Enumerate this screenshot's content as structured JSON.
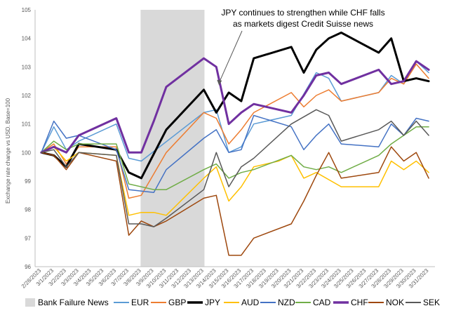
{
  "chart_data": {
    "type": "line",
    "ylabel": "Exchange rate change vs USD. Base=100",
    "ylim": [
      96,
      105
    ],
    "yticks": [
      96,
      97,
      98,
      99,
      100,
      101,
      102,
      103,
      104,
      105
    ],
    "x": [
      "2/28/2023",
      "3/1/2023",
      "3/2/2023",
      "3/3/2023",
      "3/4/2023",
      "3/5/2023",
      "3/6/2023",
      "3/7/2023",
      "3/8/2023",
      "3/9/2023",
      "3/10/2023",
      "3/11/2023",
      "3/12/2023",
      "3/13/2023",
      "3/14/2023",
      "3/15/2023",
      "3/16/2023",
      "3/17/2023",
      "3/18/2023",
      "3/19/2023",
      "3/20/2023",
      "3/21/2023",
      "3/22/2023",
      "3/23/2023",
      "3/24/2023",
      "3/25/2023",
      "3/26/2023",
      "3/27/2023",
      "3/28/2023",
      "3/29/2023",
      "3/30/2023",
      "3/31/2023"
    ],
    "shaded_region": {
      "name": "Bank Failure News",
      "x_start": "3/8/2023",
      "x_end": "3/13/2023",
      "color": "#d9d9d9"
    },
    "annotation": {
      "lines": [
        "JPY continues to strengthen while CHF falls",
        "as markets digest Credit Suisse news"
      ],
      "arrow_to": {
        "x": "3/14/2023",
        "y": 102.3
      }
    },
    "legend_position": "bottom",
    "series": [
      {
        "name": "EUR",
        "color": "#5b9bd5",
        "width": 1.5,
        "points": [
          [
            0,
            100
          ],
          [
            1,
            100.9
          ],
          [
            2,
            100.1
          ],
          [
            3,
            100.4
          ],
          [
            6,
            101
          ],
          [
            7,
            99.8
          ],
          [
            8,
            99.7
          ],
          [
            13,
            101.4
          ],
          [
            14,
            101.5
          ],
          [
            15,
            100
          ],
          [
            16,
            100.2
          ],
          [
            17,
            101
          ],
          [
            20,
            101.3
          ],
          [
            22,
            102.8
          ],
          [
            23,
            102.6
          ],
          [
            24,
            101.8
          ],
          [
            27,
            102.1
          ],
          [
            28,
            102.7
          ],
          [
            29,
            102.4
          ],
          [
            30,
            103.2
          ],
          [
            31,
            102.8
          ]
        ]
      },
      {
        "name": "GBP",
        "color": "#ed7d31",
        "width": 1.5,
        "points": [
          [
            0,
            100
          ],
          [
            1,
            100.3
          ],
          [
            2,
            99.6
          ],
          [
            3,
            100.2
          ],
          [
            6,
            100.2
          ],
          [
            7,
            98.4
          ],
          [
            8,
            98.5
          ],
          [
            10,
            100
          ],
          [
            13,
            101.4
          ],
          [
            14,
            101.2
          ],
          [
            15,
            100.3
          ],
          [
            16,
            100.8
          ],
          [
            17,
            101.4
          ],
          [
            20,
            102.1
          ],
          [
            21,
            101.6
          ],
          [
            22,
            102
          ],
          [
            23,
            102.2
          ],
          [
            24,
            101.8
          ],
          [
            27,
            102.1
          ],
          [
            28,
            102.6
          ],
          [
            29,
            102.4
          ],
          [
            30,
            103.1
          ],
          [
            31,
            102.6
          ]
        ]
      },
      {
        "name": "JPY",
        "color": "#000000",
        "width": 3,
        "points": [
          [
            0,
            100
          ],
          [
            1,
            99.9
          ],
          [
            2,
            99.5
          ],
          [
            3,
            100.3
          ],
          [
            6,
            100.1
          ],
          [
            7,
            99.3
          ],
          [
            8,
            99.1
          ],
          [
            10,
            100.8
          ],
          [
            13,
            102.2
          ],
          [
            14,
            101.4
          ],
          [
            15,
            102.1
          ],
          [
            16,
            101.8
          ],
          [
            17,
            103.3
          ],
          [
            20,
            103.7
          ],
          [
            21,
            102.8
          ],
          [
            22,
            103.6
          ],
          [
            23,
            104
          ],
          [
            24,
            104.2
          ],
          [
            27,
            103.5
          ],
          [
            28,
            104
          ],
          [
            29,
            102.5
          ],
          [
            30,
            102.6
          ],
          [
            31,
            102.5
          ]
        ]
      },
      {
        "name": "AUD",
        "color": "#ffc000",
        "width": 1.5,
        "points": [
          [
            0,
            100
          ],
          [
            1,
            100.2
          ],
          [
            2,
            99.7
          ],
          [
            3,
            100
          ],
          [
            6,
            99.9
          ],
          [
            7,
            97.8
          ],
          [
            8,
            97.9
          ],
          [
            9,
            97.9
          ],
          [
            10,
            97.8
          ],
          [
            13,
            99.1
          ],
          [
            14,
            99.5
          ],
          [
            15,
            98.3
          ],
          [
            16,
            98.8
          ],
          [
            17,
            99.5
          ],
          [
            19,
            99.7
          ],
          [
            20,
            99.9
          ],
          [
            21,
            99.1
          ],
          [
            22,
            99.3
          ],
          [
            24,
            98.8
          ],
          [
            27,
            98.8
          ],
          [
            28,
            99.7
          ],
          [
            29,
            99.4
          ],
          [
            30,
            99.7
          ],
          [
            31,
            99.3
          ]
        ]
      },
      {
        "name": "NZD",
        "color": "#4472c4",
        "width": 1.5,
        "points": [
          [
            0,
            100
          ],
          [
            1,
            101.1
          ],
          [
            2,
            100.5
          ],
          [
            3,
            100.6
          ],
          [
            6,
            100.1
          ],
          [
            7,
            98.7
          ],
          [
            9,
            98.6
          ],
          [
            10,
            99.4
          ],
          [
            13,
            100.5
          ],
          [
            14,
            100.8
          ],
          [
            15,
            100
          ],
          [
            16,
            100.1
          ],
          [
            17,
            101.3
          ],
          [
            20,
            100.9
          ],
          [
            21,
            100.1
          ],
          [
            22,
            100.6
          ],
          [
            23,
            101
          ],
          [
            24,
            100.3
          ],
          [
            27,
            100.2
          ],
          [
            28,
            101
          ],
          [
            29,
            100.6
          ],
          [
            30,
            101.2
          ],
          [
            31,
            101.1
          ]
        ]
      },
      {
        "name": "CAD",
        "color": "#70ad47",
        "width": 1.5,
        "points": [
          [
            0,
            100
          ],
          [
            1,
            100.4
          ],
          [
            2,
            100.1
          ],
          [
            3,
            100.3
          ],
          [
            6,
            100.3
          ],
          [
            7,
            98.9
          ],
          [
            9,
            98.7
          ],
          [
            10,
            98.7
          ],
          [
            13,
            99.4
          ],
          [
            14,
            99.6
          ],
          [
            15,
            99.1
          ],
          [
            16,
            99.3
          ],
          [
            17,
            99.4
          ],
          [
            20,
            99.9
          ],
          [
            21,
            99.5
          ],
          [
            22,
            99.4
          ],
          [
            23,
            99.5
          ],
          [
            24,
            99.3
          ],
          [
            27,
            99.9
          ],
          [
            28,
            100.3
          ],
          [
            29,
            100.6
          ],
          [
            30,
            100.9
          ],
          [
            31,
            100.9
          ]
        ]
      },
      {
        "name": "CHF",
        "color": "#7030a0",
        "width": 3,
        "points": [
          [
            0,
            100
          ],
          [
            1,
            100.2
          ],
          [
            2,
            100
          ],
          [
            3,
            100.6
          ],
          [
            6,
            101.2
          ],
          [
            7,
            100
          ],
          [
            8,
            100
          ],
          [
            9,
            101.1
          ],
          [
            10,
            102.3
          ],
          [
            13,
            103.3
          ],
          [
            14,
            103
          ],
          [
            15,
            101
          ],
          [
            16,
            101.4
          ],
          [
            17,
            101.7
          ],
          [
            20,
            101.4
          ],
          [
            21,
            102
          ],
          [
            22,
            102.7
          ],
          [
            23,
            102.8
          ],
          [
            24,
            102.4
          ],
          [
            27,
            102.9
          ],
          [
            28,
            102.4
          ],
          [
            29,
            102.5
          ],
          [
            30,
            103.2
          ],
          [
            31,
            102.9
          ]
        ]
      },
      {
        "name": "NOK",
        "color": "#9e480e",
        "width": 1.5,
        "points": [
          [
            0,
            100
          ],
          [
            1,
            99.9
          ],
          [
            2,
            99.4
          ],
          [
            3,
            100
          ],
          [
            6,
            99.7
          ],
          [
            7,
            97.1
          ],
          [
            8,
            97.6
          ],
          [
            9,
            97.4
          ],
          [
            10,
            97.6
          ],
          [
            13,
            98.4
          ],
          [
            14,
            98.5
          ],
          [
            15,
            96.4
          ],
          [
            16,
            96.4
          ],
          [
            17,
            97
          ],
          [
            20,
            97.5
          ],
          [
            21,
            98.3
          ],
          [
            22,
            99.2
          ],
          [
            23,
            100
          ],
          [
            24,
            99.1
          ],
          [
            27,
            99.3
          ],
          [
            28,
            100.2
          ],
          [
            29,
            99.7
          ],
          [
            30,
            100
          ],
          [
            31,
            99.1
          ]
        ]
      },
      {
        "name": "SEK",
        "color": "#595959",
        "width": 1.5,
        "points": [
          [
            0,
            100
          ],
          [
            1,
            100.1
          ],
          [
            2,
            99.5
          ],
          [
            3,
            100
          ],
          [
            6,
            99.9
          ],
          [
            7,
            97.5
          ],
          [
            8,
            97.5
          ],
          [
            9,
            97.4
          ],
          [
            10,
            97.7
          ],
          [
            13,
            98.7
          ],
          [
            14,
            100
          ],
          [
            15,
            98.8
          ],
          [
            16,
            99.5
          ],
          [
            17,
            99.8
          ],
          [
            20,
            101
          ],
          [
            22,
            101.5
          ],
          [
            23,
            101.3
          ],
          [
            24,
            100.4
          ],
          [
            27,
            100.8
          ],
          [
            28,
            101.1
          ],
          [
            29,
            100.6
          ],
          [
            30,
            101.1
          ],
          [
            31,
            100.6
          ]
        ]
      }
    ]
  }
}
